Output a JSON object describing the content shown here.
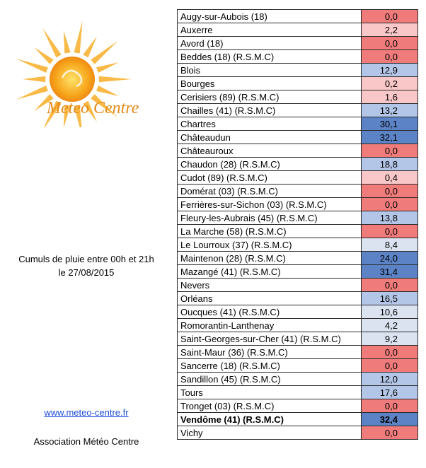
{
  "logo": {
    "text": "Meteo Centre"
  },
  "caption": {
    "line1": "Cumuls de pluie entre 00h et 21h",
    "line2": "le 27/08/2015"
  },
  "link": "www.meteo-centre.fr",
  "association": "Association Météo Centre",
  "colors": {
    "zero": "#f07b7b",
    "very_low": "#f9c7c7",
    "low": "#dbe3f1",
    "mid": "#b4c6e7",
    "high": "#5b83c6"
  },
  "stations": [
    {
      "name": "Augy-sur-Aubois (18)",
      "value": "0,0"
    },
    {
      "name": "Auxerre",
      "value": "2,2"
    },
    {
      "name": "Avord (18)",
      "value": "0,0"
    },
    {
      "name": "Beddes (18) (R.S.M.C)",
      "value": "0,0"
    },
    {
      "name": "Blois",
      "value": "12,9"
    },
    {
      "name": "Bourges",
      "value": "0,2"
    },
    {
      "name": "Cerisiers (89) (R.S.M.C)",
      "value": "1,6"
    },
    {
      "name": "Chailles (41) (R.S.M.C)",
      "value": "13,2"
    },
    {
      "name": "Chartres",
      "value": "30,1"
    },
    {
      "name": "Châteaudun",
      "value": "32,1"
    },
    {
      "name": "Châteauroux",
      "value": "0,0"
    },
    {
      "name": "Chaudon (28) (R.S.M.C)",
      "value": "18,8"
    },
    {
      "name": "Cudot (89) (R.S.M.C)",
      "value": "0,4"
    },
    {
      "name": "Domérat (03) (R.S.M.C)",
      "value": "0,0"
    },
    {
      "name": "Ferrières-sur-Sichon (03) (R.S.M.C)",
      "value": "0,0"
    },
    {
      "name": "Fleury-les-Aubrais (45) (R.S.M.C)",
      "value": "13,8"
    },
    {
      "name": "La Marche (58) (R.S.M.C)",
      "value": "0,0"
    },
    {
      "name": "Le Lourroux (37) (R.S.M.C)",
      "value": "8,4"
    },
    {
      "name": "Maintenon (28) (R.S.M.C)",
      "value": "24,0"
    },
    {
      "name": "Mazangé (41) (R.S.M.C)",
      "value": "31,4"
    },
    {
      "name": "Nevers",
      "value": "0,0"
    },
    {
      "name": "Orléans",
      "value": "16,5"
    },
    {
      "name": "Oucques (41) (R.S.M.C)",
      "value": "10,6"
    },
    {
      "name": "Romorantin-Lanthenay",
      "value": "4,2"
    },
    {
      "name": "Saint-Georges-sur-Cher (41) (R.S.M.C)",
      "value": "9,2"
    },
    {
      "name": "Saint-Maur (36) (R.S.M.C)",
      "value": "0,0"
    },
    {
      "name": "Sancerre (18) (R.S.M.C)",
      "value": "0,0"
    },
    {
      "name": "Sandillon (45) (R.S.M.C)",
      "value": "12,0"
    },
    {
      "name": "Tours",
      "value": "17,6"
    },
    {
      "name": "Tronget (03) (R.S.M.C)",
      "value": "0,0"
    },
    {
      "name": "Vendôme (41) (R.S.M.C)",
      "value": "32,4",
      "bold": true
    },
    {
      "name": "Vichy",
      "value": "0,0"
    }
  ]
}
